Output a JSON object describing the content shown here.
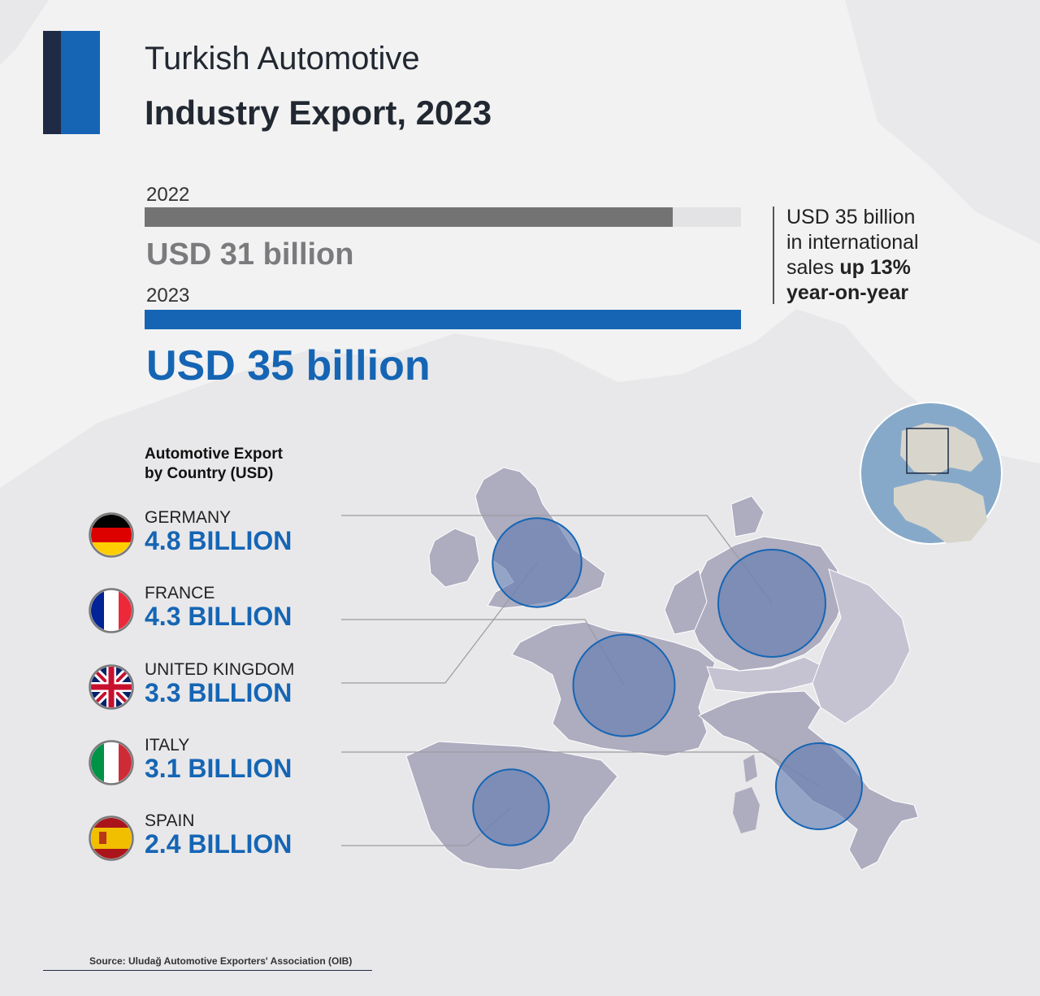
{
  "header": {
    "title_line1": "Turkish Automotive",
    "title_line2": "Industry Export, 2023"
  },
  "colors": {
    "accent_blue": "#1565b4",
    "accent_dark": "#1f2a44",
    "bar_2022": "#737373",
    "bar_2023": "#1565b4",
    "country_fill": "#aeacbf",
    "bubble_fill": "#5f7ab0"
  },
  "comparison": {
    "year_2022_label": "2022",
    "year_2022_value_text": "USD 31 billion",
    "year_2023_label": "2023",
    "year_2023_value_text": "USD 35 billion"
  },
  "sidebar_note": {
    "line1": "USD 35 billion",
    "line2": "in international",
    "line3_prefix": "sales ",
    "line3_bold": "up 13%",
    "line4_bold": "year-on-year"
  },
  "legend": {
    "title_line1": "Automotive Export",
    "title_line2": "by Country (USD)"
  },
  "countries": [
    {
      "name": "GERMANY",
      "value_text": "4.8 BILLION",
      "flag_icon": "germany-flag-icon"
    },
    {
      "name": "FRANCE",
      "value_text": "4.3 BILLION",
      "flag_icon": "france-flag-icon"
    },
    {
      "name": "UNITED KINGDOM",
      "value_text": "3.3 BILLION",
      "flag_icon": "uk-flag-icon"
    },
    {
      "name": "ITALY",
      "value_text": "3.1 BILLION",
      "flag_icon": "italy-flag-icon"
    },
    {
      "name": "SPAIN",
      "value_text": "2.4 BILLION",
      "flag_icon": "spain-flag-icon"
    }
  ],
  "source": "Source: Uludağ Automotive Exporters' Association (OIB)",
  "chart_data": [
    {
      "type": "bar",
      "orientation": "horizontal",
      "categories": [
        "2022",
        "2023"
      ],
      "values": [
        31,
        35
      ],
      "unit": "USD billion"
    },
    {
      "type": "bubble-map",
      "categories": [
        "Germany",
        "France",
        "United Kingdom",
        "Italy",
        "Spain"
      ],
      "values": [
        4.8,
        4.3,
        3.3,
        3.1,
        2.4
      ],
      "unit": "USD billion"
    }
  ]
}
